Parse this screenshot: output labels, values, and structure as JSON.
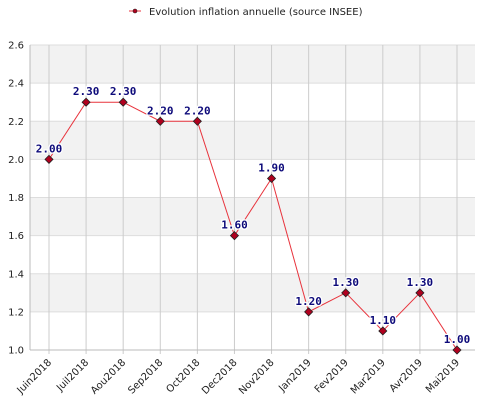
{
  "chart_data": {
    "type": "line",
    "title": "",
    "xlabel": "",
    "ylabel": "",
    "categories": [
      "Juin2018",
      "Juil2018",
      "Aou2018",
      "Sep2018",
      "Oct2018",
      "Dec2018",
      "Nov2018",
      "Jan2019",
      "Fev2019",
      "Mar2019",
      "Avr2019",
      "Mai2019"
    ],
    "series": [
      {
        "name": "Evolution inflation annuelle (source INSEE)",
        "values": [
          2.0,
          2.3,
          2.3,
          2.2,
          2.2,
          1.6,
          1.9,
          1.2,
          1.3,
          1.1,
          1.3,
          1.0
        ],
        "labels": [
          "2.00",
          "2.30",
          "2.30",
          "2.20",
          "2.20",
          "1.60",
          "1.90",
          "1.20",
          "1.30",
          "1.10",
          "1.30",
          "1.00"
        ],
        "line_color": "#e8333c",
        "marker_color": "#b0001e"
      }
    ],
    "ylim": [
      1.0,
      2.6
    ],
    "yticks": [
      "1.0",
      "1.2",
      "1.4",
      "1.6",
      "1.8",
      "2.0",
      "2.2",
      "2.4",
      "2.6"
    ],
    "grid": true,
    "legend_position": "top-center"
  }
}
